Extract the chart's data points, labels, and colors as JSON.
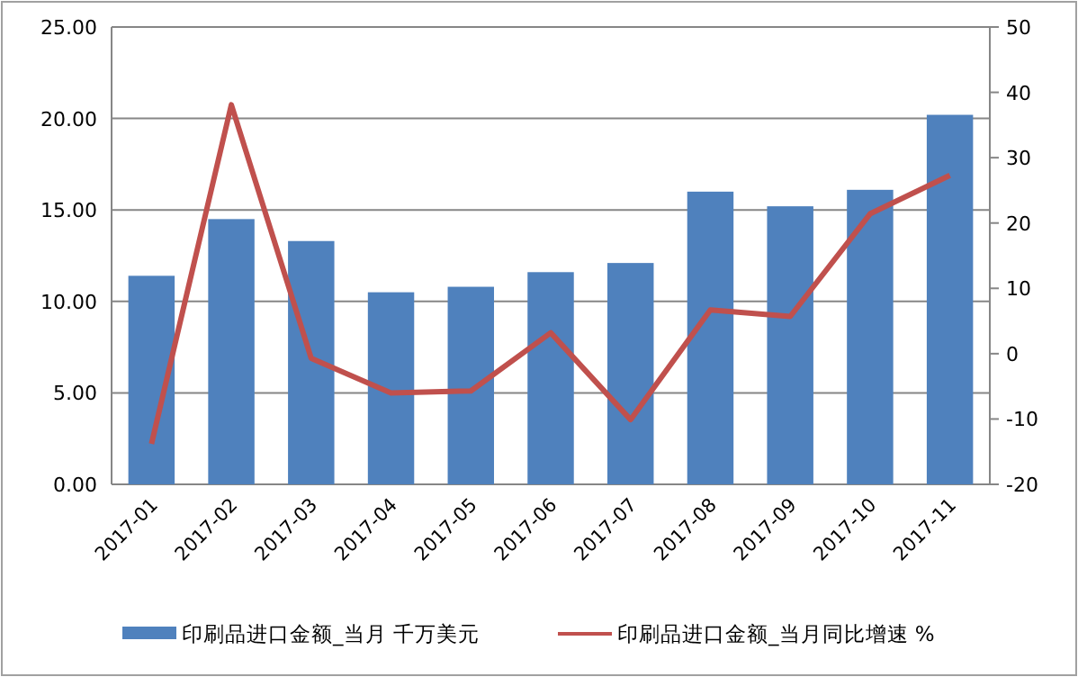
{
  "chart_data": {
    "type": "bar",
    "categories": [
      "2017-01",
      "2017-02",
      "2017-03",
      "2017-04",
      "2017-05",
      "2017-06",
      "2017-07",
      "2017-08",
      "2017-09",
      "2017-10",
      "2017-11"
    ],
    "series": [
      {
        "name": "印刷品进口金额_当月 千万美元",
        "color": "#4f81bd",
        "values": [
          11.4,
          14.5,
          13.3,
          10.5,
          10.8,
          11.6,
          12.1,
          16.0,
          15.2,
          16.1,
          20.2
        ]
      },
      {
        "name": "印刷品进口金额_当月同比增速 %",
        "type": "line",
        "axis": "y2",
        "color": "#c0504d",
        "values": [
          -13.8,
          38.1,
          -0.7,
          -6.0,
          -5.7,
          3.2,
          -10.1,
          6.7,
          5.7,
          21.4,
          27.3
        ]
      }
    ],
    "ylim": [
      0,
      25
    ],
    "yticks": [
      {
        "value": 0,
        "label": "0.00"
      },
      {
        "value": 5,
        "label": "5.00"
      },
      {
        "value": 10,
        "label": "10.00"
      },
      {
        "value": 15,
        "label": "15.00"
      },
      {
        "value": 20,
        "label": "20.00"
      },
      {
        "value": 25,
        "label": "25.00"
      }
    ],
    "y2lim": [
      -20,
      50
    ],
    "y2ticks": [
      -20,
      -10,
      0,
      10,
      20,
      30,
      40,
      50
    ],
    "grid": "y",
    "legend": "bottom",
    "marker": "none",
    "line_style": "solid"
  }
}
